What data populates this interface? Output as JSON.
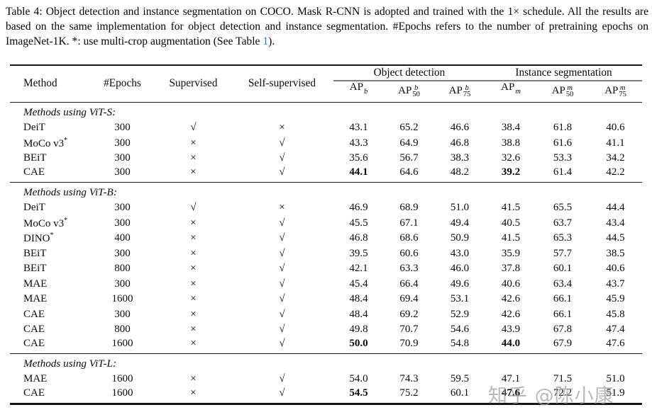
{
  "caption": {
    "text_before_link": "Table 4: Object detection and instance segmentation on COCO. Mask R-CNN is adopted and trained with the 1× schedule. All the results are based on the same implementation for object detection and instance segmentation. #Epochs refers to the number of pretraining epochs on ImageNet-1K. *: use multi-crop augmentation (See Table ",
    "link_text": "1",
    "text_after_link": ").",
    "link_color": "#2e7da6"
  },
  "table": {
    "columns": [
      "Method",
      "#Epochs",
      "Supervised",
      "Self-supervised"
    ],
    "groups": [
      {
        "label": "Object detection"
      },
      {
        "label": "Instance segmentation"
      }
    ],
    "subheaders": [
      {
        "base": "AP",
        "sup": "b",
        "sub": ""
      },
      {
        "base": "AP",
        "sup": "b",
        "sub": "50"
      },
      {
        "base": "AP",
        "sup": "b",
        "sub": "75"
      },
      {
        "base": "AP",
        "sup": "m",
        "sub": ""
      },
      {
        "base": "AP",
        "sup": "m",
        "sub": "50"
      },
      {
        "base": "AP",
        "sup": "m",
        "sub": "75"
      }
    ],
    "check_glyph": "√",
    "cross_glyph": "×",
    "sections": [
      {
        "title": "Methods using ViT-S:",
        "rows": [
          {
            "method": "DeiT",
            "epochs": "300",
            "supervised": "check",
            "self_supervised": "cross",
            "values": [
              "43.1",
              "65.2",
              "46.6",
              "38.4",
              "61.8",
              "40.6"
            ],
            "bold": []
          },
          {
            "method": "MoCo v3*",
            "epochs": "300",
            "supervised": "cross",
            "self_supervised": "check",
            "values": [
              "43.3",
              "64.9",
              "46.8",
              "38.8",
              "61.6",
              "41.1"
            ],
            "bold": []
          },
          {
            "method": "BEiT",
            "epochs": "300",
            "supervised": "cross",
            "self_supervised": "check",
            "values": [
              "35.6",
              "56.7",
              "38.3",
              "32.6",
              "53.3",
              "34.2"
            ],
            "bold": []
          },
          {
            "method": "CAE",
            "epochs": "300",
            "supervised": "cross",
            "self_supervised": "check",
            "values": [
              "44.1",
              "64.6",
              "48.2",
              "39.2",
              "61.4",
              "42.2"
            ],
            "bold": [
              0,
              3
            ]
          }
        ]
      },
      {
        "title": "Methods using ViT-B:",
        "rows": [
          {
            "method": "DeiT",
            "epochs": "300",
            "supervised": "check",
            "self_supervised": "cross",
            "values": [
              "46.9",
              "68.9",
              "51.0",
              "41.5",
              "65.5",
              "44.4"
            ],
            "bold": []
          },
          {
            "method": "MoCo v3*",
            "epochs": "300",
            "supervised": "cross",
            "self_supervised": "check",
            "values": [
              "45.5",
              "67.1",
              "49.4",
              "40.5",
              "63.7",
              "43.4"
            ],
            "bold": []
          },
          {
            "method": "DINO*",
            "epochs": "400",
            "supervised": "cross",
            "self_supervised": "check",
            "values": [
              "46.8",
              "68.6",
              "50.9",
              "41.5",
              "65.3",
              "44.5"
            ],
            "bold": []
          },
          {
            "method": "BEiT",
            "epochs": "300",
            "supervised": "cross",
            "self_supervised": "check",
            "values": [
              "39.5",
              "60.6",
              "43.0",
              "35.9",
              "57.7",
              "38.5"
            ],
            "bold": []
          },
          {
            "method": "BEiT",
            "epochs": "800",
            "supervised": "cross",
            "self_supervised": "check",
            "values": [
              "42.1",
              "63.3",
              "46.0",
              "37.8",
              "60.1",
              "40.6"
            ],
            "bold": []
          },
          {
            "method": "MAE",
            "epochs": "300",
            "supervised": "cross",
            "self_supervised": "check",
            "values": [
              "45.4",
              "66.4",
              "49.6",
              "40.6",
              "63.4",
              "43.7"
            ],
            "bold": []
          },
          {
            "method": "MAE",
            "epochs": "1600",
            "supervised": "cross",
            "self_supervised": "check",
            "values": [
              "48.4",
              "69.4",
              "53.1",
              "42.6",
              "66.1",
              "45.9"
            ],
            "bold": []
          },
          {
            "method": "CAE",
            "epochs": "300",
            "supervised": "cross",
            "self_supervised": "check",
            "values": [
              "48.4",
              "69.2",
              "52.9",
              "42.6",
              "66.1",
              "45.8"
            ],
            "bold": []
          },
          {
            "method": "CAE",
            "epochs": "800",
            "supervised": "cross",
            "self_supervised": "check",
            "values": [
              "49.8",
              "70.7",
              "54.6",
              "43.9",
              "67.8",
              "47.4"
            ],
            "bold": []
          },
          {
            "method": "CAE",
            "epochs": "1600",
            "supervised": "cross",
            "self_supervised": "check",
            "values": [
              "50.0",
              "70.9",
              "54.8",
              "44.0",
              "67.9",
              "47.6"
            ],
            "bold": [
              0,
              3
            ]
          }
        ]
      },
      {
        "title": "Methods using ViT-L:",
        "rows": [
          {
            "method": "MAE",
            "epochs": "1600",
            "supervised": "cross",
            "self_supervised": "check",
            "values": [
              "54.0",
              "74.3",
              "59.5",
              "47.1",
              "71.5",
              "51.0"
            ],
            "bold": []
          },
          {
            "method": "CAE",
            "epochs": "1600",
            "supervised": "cross",
            "self_supervised": "check",
            "values": [
              "54.5",
              "75.2",
              "60.1",
              "47.6",
              "72.2",
              "51.9"
            ],
            "bold": [
              0,
              3
            ]
          }
        ]
      }
    ]
  },
  "watermark": {
    "text": "知乎 @陈小康",
    "color": "#9e9e9e"
  }
}
